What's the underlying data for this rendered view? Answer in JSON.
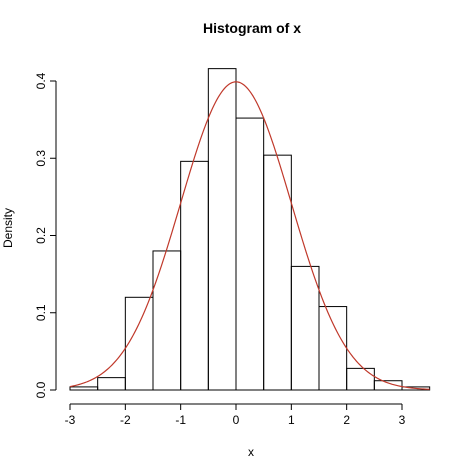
{
  "chart_data": {
    "type": "bar",
    "title": "Histogram of x",
    "xlabel": "x",
    "ylabel": "Density",
    "xlim": [
      -3,
      3.5
    ],
    "ylim": [
      0,
      0.4
    ],
    "x_ticks": [
      -3,
      -2,
      -1,
      0,
      1,
      2,
      3
    ],
    "y_ticks": [
      0.0,
      0.1,
      0.2,
      0.3,
      0.4
    ],
    "y_tick_labels": [
      "0.0",
      "0.1",
      "0.2",
      "0.3",
      "0.4"
    ],
    "bin_edges": [
      -3,
      -2.5,
      -2,
      -1.5,
      -1,
      -0.5,
      0,
      0.5,
      1,
      1.5,
      2,
      2.5,
      3,
      3.5
    ],
    "values": [
      0.004,
      0.016,
      0.12,
      0.18,
      0.296,
      0.416,
      0.352,
      0.304,
      0.16,
      0.108,
      0.028,
      0.012,
      0.004
    ],
    "density_curve": {
      "distribution": "normal",
      "mean": 0,
      "sd": 1,
      "color": "#c0392b"
    },
    "grid": false,
    "colors": {
      "bar_stroke": "#000000",
      "curve": "#c0392b"
    }
  }
}
